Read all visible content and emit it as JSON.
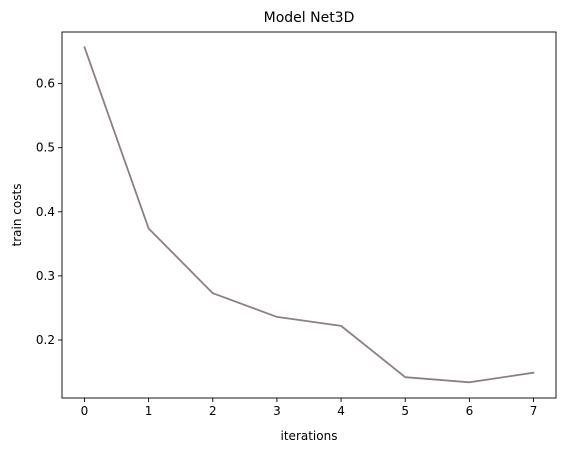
{
  "chart_data": {
    "type": "line",
    "title": "Model Net3D",
    "xlabel": "iterations",
    "ylabel": "train costs",
    "x": [
      0,
      1,
      2,
      3,
      4,
      5,
      6,
      7
    ],
    "series": [
      {
        "values": [
          0.657,
          0.374,
          0.273,
          0.236,
          0.222,
          0.142,
          0.134,
          0.149
        ]
      }
    ],
    "xlim": [
      -0.35,
      7.35
    ],
    "ylim": [
      0.1095,
      0.6805
    ],
    "xticks": [
      0,
      1,
      2,
      3,
      4,
      5,
      6,
      7
    ],
    "yticks": [
      0.2,
      0.3,
      0.4,
      0.5,
      0.6
    ],
    "grid": false,
    "line_color": "#8c7f84"
  }
}
